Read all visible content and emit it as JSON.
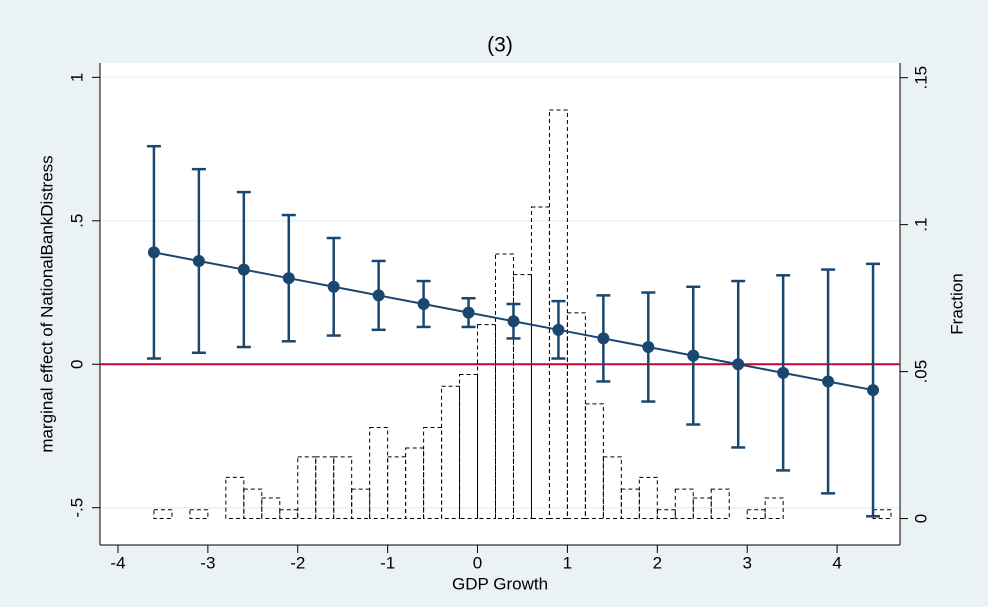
{
  "chart_data": {
    "type": "line",
    "title": "(3)",
    "x_label": "GDP Growth",
    "y_label": "marginal effect of NationalBankDistress",
    "y2_label": "Fraction",
    "x": [
      -3.6,
      -3.1,
      -2.6,
      -2.1,
      -1.6,
      -1.1,
      -0.6,
      -0.1,
      0.4,
      0.9,
      1.4,
      1.9,
      2.4,
      2.9,
      3.4,
      3.9,
      4.4
    ],
    "values": [
      0.39,
      0.36,
      0.33,
      0.3,
      0.27,
      0.24,
      0.21,
      0.18,
      0.15,
      0.12,
      0.09,
      0.06,
      0.03,
      0.0,
      -0.03,
      -0.06,
      -0.09
    ],
    "ci_upper": [
      0.76,
      0.68,
      0.6,
      0.52,
      0.44,
      0.36,
      0.29,
      0.23,
      0.21,
      0.22,
      0.24,
      0.25,
      0.27,
      0.29,
      0.31,
      0.33,
      0.35
    ],
    "ci_lower": [
      0.02,
      0.04,
      0.06,
      0.08,
      0.1,
      0.12,
      0.13,
      0.13,
      0.09,
      0.02,
      -0.06,
      -0.13,
      -0.21,
      -0.29,
      -0.37,
      -0.45,
      -0.53
    ],
    "color": "#1a476f",
    "reference_line": {
      "value": 0,
      "color": "#c10534"
    },
    "histogram": {
      "axis": "y2",
      "bins": [
        -3.6,
        -3.4,
        -3.2,
        -3.0,
        -2.8,
        -2.6,
        -2.4,
        -2.2,
        -2.0,
        -1.8,
        -1.6,
        -1.4,
        -1.2,
        -1.0,
        -0.8,
        -0.6,
        -0.4,
        -0.2,
        0.0,
        0.2,
        0.4,
        0.6,
        0.8,
        1.0,
        1.2,
        1.4,
        1.6,
        1.8,
        2.0,
        2.2,
        2.4,
        2.6,
        2.8,
        3.0,
        3.2,
        3.4,
        3.6,
        3.8,
        4.0,
        4.2,
        4.4,
        4.6
      ],
      "counts": [
        0.003,
        0,
        0.003,
        0,
        0.014,
        0.01,
        0.007,
        0.003,
        0.021,
        0.021,
        0.021,
        0.01,
        0.031,
        0.021,
        0.024,
        0.031,
        0.045,
        0.049,
        0.066,
        0.09,
        0.083,
        0.106,
        0.139,
        0.07,
        0.039,
        0.021,
        0.01,
        0.014,
        0.003,
        0.01,
        0.007,
        0.01,
        0,
        0.003,
        0.007,
        0,
        0,
        0,
        0,
        0,
        0.003
      ],
      "color": "#000000"
    },
    "xlim": [
      -4.2,
      4.7
    ],
    "xticks": [
      -4,
      -3,
      -2,
      -1,
      0,
      1,
      2,
      3,
      4
    ],
    "ylim": [
      -0.63,
      1.05
    ],
    "yticks": [
      {
        "value": -0.5,
        "label": "-.5"
      },
      0,
      {
        "value": 0.5,
        "label": ".5"
      },
      1
    ],
    "y2lim": [
      -0.009,
      0.155
    ],
    "y2ticks": [
      0,
      {
        "value": 0.05,
        "label": ".05"
      },
      {
        "value": 0.1,
        "label": ".1"
      },
      {
        "value": 0.15,
        "label": ".15"
      }
    ],
    "grid": true
  }
}
